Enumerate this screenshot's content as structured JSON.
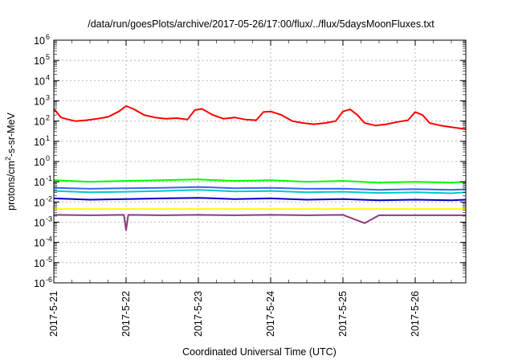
{
  "chart_data": {
    "type": "line",
    "title": "/data/run/goesPlots/archive/2017-05-26/17:00/flux/../flux/5daysMoonFluxes.txt",
    "xlabel": "Coordinated Universal Time (UTC)",
    "ylabel": "protons/cm²-s-sr-MeV",
    "yscale": "log",
    "ylim": [
      1e-06,
      1000000.0
    ],
    "x_start": "2017-05-21",
    "x_end": "2017-05-26 17:00",
    "xlim_days": [
      0,
      5.7
    ],
    "x_ticks": [
      {
        "day": 0,
        "label": "2017-5-21"
      },
      {
        "day": 1,
        "label": "2017-5-22"
      },
      {
        "day": 2,
        "label": "2017-5-23"
      },
      {
        "day": 3,
        "label": "2017-5-24"
      },
      {
        "day": 4,
        "label": "2017-5-25"
      },
      {
        "day": 5,
        "label": "2017-5-26"
      }
    ],
    "y_ticks": [
      {
        "exp": -6,
        "label": "10",
        "sup": "-6"
      },
      {
        "exp": -5,
        "label": "10",
        "sup": "-5"
      },
      {
        "exp": -4,
        "label": "10",
        "sup": "-4"
      },
      {
        "exp": -3,
        "label": "10",
        "sup": "-3"
      },
      {
        "exp": -2,
        "label": "10",
        "sup": "-2"
      },
      {
        "exp": -1,
        "label": "10",
        "sup": "-1"
      },
      {
        "exp": 0,
        "label": "10",
        "sup": "0"
      },
      {
        "exp": 1,
        "label": "10",
        "sup": "1"
      },
      {
        "exp": 2,
        "label": "10",
        "sup": "2"
      },
      {
        "exp": 3,
        "label": "10",
        "sup": "3"
      },
      {
        "exp": 4,
        "label": "10",
        "sup": "4"
      },
      {
        "exp": 5,
        "label": "10",
        "sup": "5"
      },
      {
        "exp": 6,
        "label": "10",
        "sup": "6"
      }
    ],
    "grid": true,
    "series": [
      {
        "color": "#ff0000",
        "x": [
          0,
          0.1,
          0.2,
          0.3,
          0.45,
          0.6,
          0.75,
          0.9,
          1.0,
          1.1,
          1.25,
          1.4,
          1.55,
          1.7,
          1.85,
          1.95,
          2.05,
          2.2,
          2.35,
          2.5,
          2.65,
          2.8,
          2.9,
          3.0,
          3.15,
          3.3,
          3.45,
          3.6,
          3.75,
          3.9,
          4.0,
          4.1,
          4.2,
          4.3,
          4.45,
          4.6,
          4.75,
          4.9,
          5.0,
          5.1,
          5.2,
          5.35,
          5.5,
          5.7
        ],
        "y": [
          400,
          150,
          120,
          100,
          110,
          130,
          160,
          300,
          550,
          400,
          200,
          150,
          130,
          140,
          120,
          350,
          400,
          200,
          130,
          150,
          120,
          110,
          280,
          300,
          200,
          100,
          80,
          70,
          80,
          100,
          300,
          380,
          200,
          80,
          60,
          70,
          90,
          110,
          280,
          200,
          80,
          60,
          50,
          40
        ]
      },
      {
        "color": "#00ff00",
        "x": [
          0,
          0.5,
          1.0,
          1.5,
          2.0,
          2.5,
          3.0,
          3.5,
          4.0,
          4.5,
          5.0,
          5.5,
          5.7
        ],
        "y": [
          0.12,
          0.1,
          0.11,
          0.12,
          0.13,
          0.11,
          0.12,
          0.1,
          0.11,
          0.09,
          0.1,
          0.09,
          0.1
        ]
      },
      {
        "color": "#00c8c8",
        "x": [
          0,
          0.5,
          1.0,
          1.5,
          2.0,
          2.5,
          3.0,
          3.5,
          4.0,
          4.5,
          5.0,
          5.5,
          5.7
        ],
        "y": [
          0.035,
          0.03,
          0.032,
          0.035,
          0.04,
          0.033,
          0.035,
          0.03,
          0.032,
          0.028,
          0.03,
          0.027,
          0.03
        ]
      },
      {
        "color": "#3264ff",
        "x": [
          0,
          0.5,
          1.0,
          1.5,
          2.0,
          2.5,
          3.0,
          3.5,
          4.0,
          4.5,
          5.0,
          5.5,
          5.7
        ],
        "y": [
          0.05,
          0.045,
          0.048,
          0.05,
          0.055,
          0.048,
          0.05,
          0.045,
          0.046,
          0.04,
          0.043,
          0.04,
          0.042
        ]
      },
      {
        "color": "#0000c8",
        "x": [
          0,
          0.5,
          1.0,
          1.5,
          2.0,
          2.5,
          3.0,
          3.5,
          4.0,
          4.5,
          5.0,
          5.5,
          5.7
        ],
        "y": [
          0.015,
          0.013,
          0.014,
          0.015,
          0.016,
          0.014,
          0.015,
          0.013,
          0.014,
          0.012,
          0.013,
          0.012,
          0.013
        ]
      },
      {
        "color": "#ffff00",
        "x": [
          0,
          0.5,
          1.0,
          1.5,
          2.0,
          2.5,
          3.0,
          3.5,
          4.0,
          4.5,
          5.0,
          5.5,
          5.7
        ],
        "y": [
          0.0045,
          0.0045,
          0.0045,
          0.0045,
          0.0045,
          0.0045,
          0.0045,
          0.0045,
          0.0045,
          0.0045,
          0.0045,
          0.0045,
          0.0045
        ]
      },
      {
        "color": "#8c3c7d",
        "x": [
          0,
          0.5,
          0.97,
          1.0,
          1.03,
          1.5,
          2.0,
          2.5,
          3.0,
          3.5,
          4.0,
          4.3,
          4.5,
          5.0,
          5.5,
          5.7
        ],
        "y": [
          0.0023,
          0.0022,
          0.0023,
          0.0004,
          0.0023,
          0.0022,
          0.0023,
          0.0022,
          0.0023,
          0.0022,
          0.0023,
          0.0009,
          0.0022,
          0.0022,
          0.0022,
          0.0022
        ]
      }
    ]
  }
}
